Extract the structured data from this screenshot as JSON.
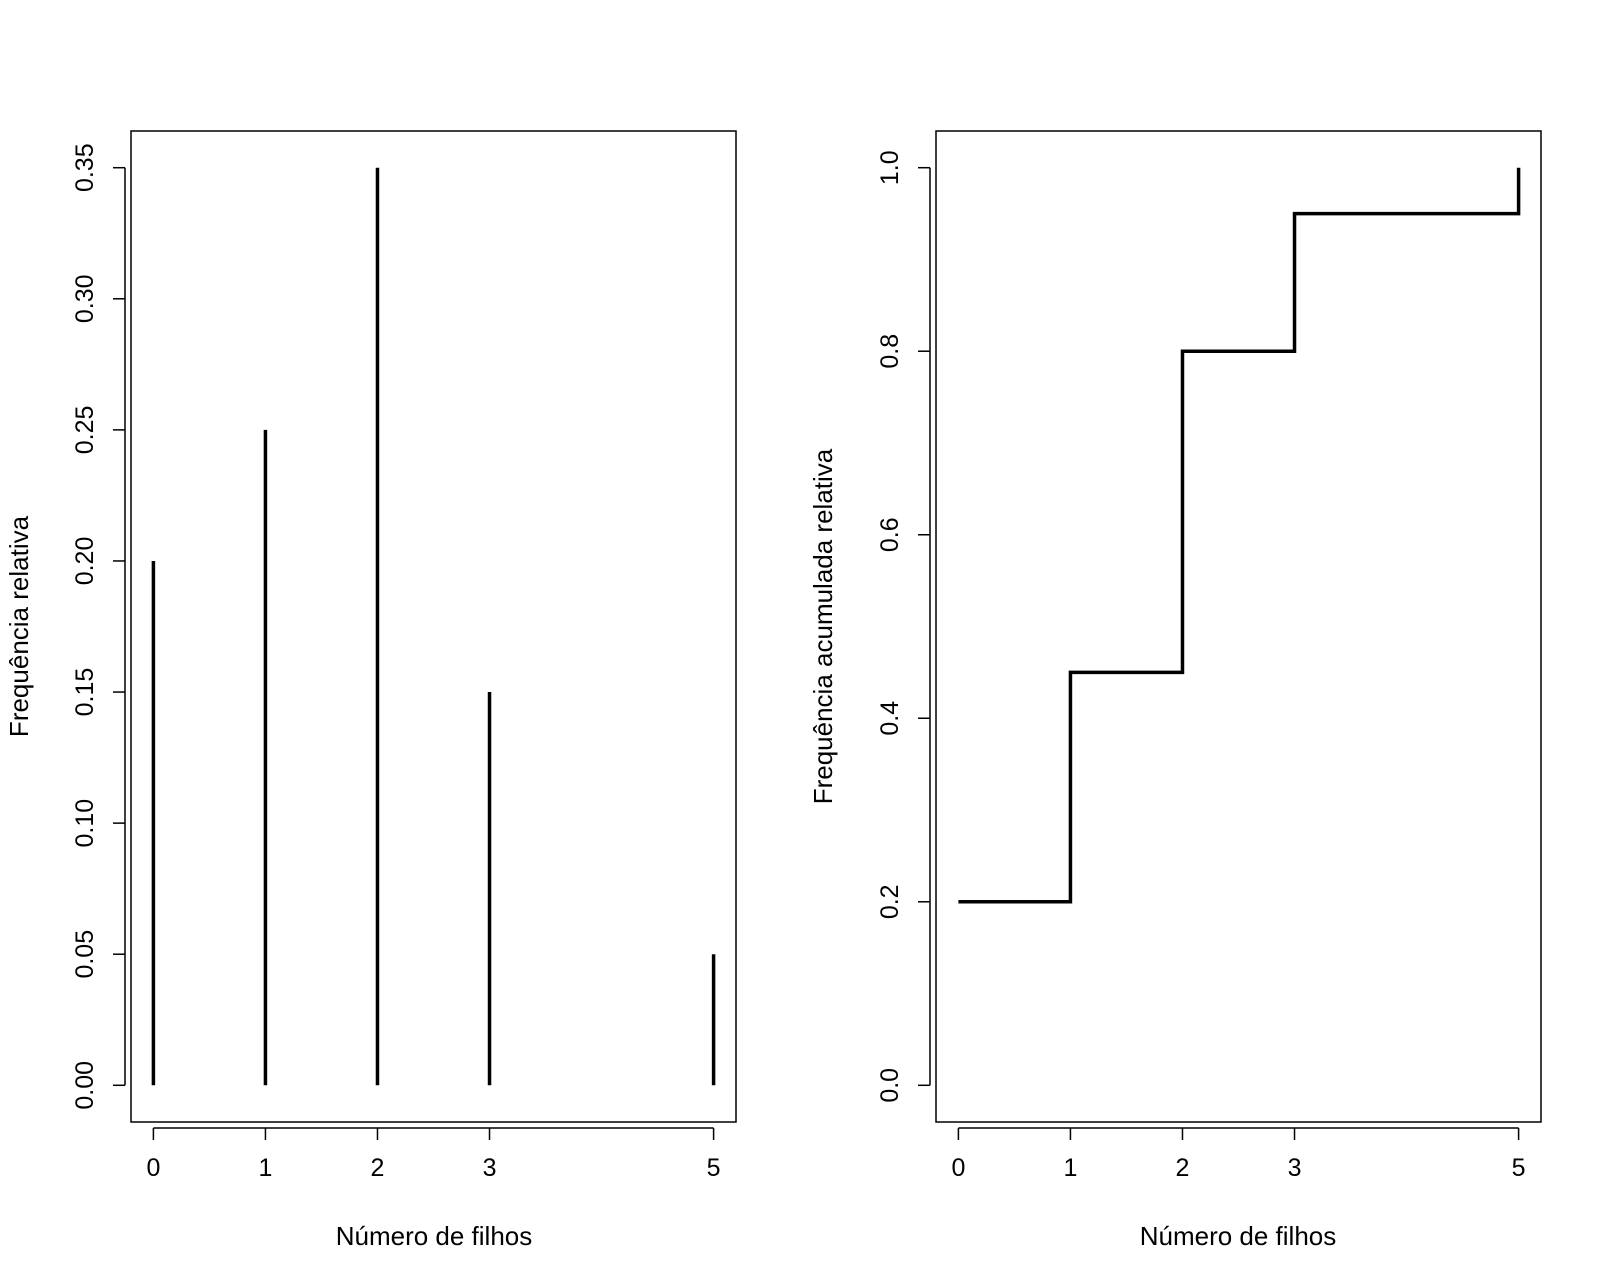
{
  "chart_data": [
    {
      "type": "bar",
      "style": "vertical lines (type h)",
      "x": [
        0,
        1,
        2,
        3,
        5
      ],
      "values": [
        0.2,
        0.25,
        0.35,
        0.15,
        0.05
      ],
      "xlabel": "Número de filhos",
      "ylabel": "Frequência relativa",
      "xticks": [
        0,
        1,
        2,
        3,
        5
      ],
      "xtick_labels": [
        "0",
        "1",
        "2",
        "3",
        "5"
      ],
      "yticks": [
        0,
        0.05,
        0.1,
        0.15,
        0.2,
        0.25,
        0.3,
        0.35
      ],
      "ytick_labels": [
        "0.00",
        "0.05",
        "0.10",
        "0.15",
        "0.20",
        "0.25",
        "0.30",
        "0.35"
      ],
      "xlim": [
        -0.2,
        5.2
      ],
      "ylim": [
        -0.014,
        0.364
      ],
      "grid": false,
      "color": "#000000"
    },
    {
      "type": "line",
      "style": "step",
      "x": [
        0,
        1,
        2,
        3,
        5
      ],
      "values": [
        0.2,
        0.45,
        0.8,
        0.95,
        1.0
      ],
      "xlabel": "Número de filhos",
      "ylabel": "Frequência acumulada relativa",
      "xticks": [
        0,
        1,
        2,
        3,
        5
      ],
      "xtick_labels": [
        "0",
        "1",
        "2",
        "3",
        "5"
      ],
      "yticks": [
        0,
        0.2,
        0.4,
        0.6,
        0.8,
        1.0
      ],
      "ytick_labels": [
        "0.0",
        "0.2",
        "0.4",
        "0.6",
        "0.8",
        "1.0"
      ],
      "xlim": [
        -0.2,
        5.2
      ],
      "ylim": [
        -0.04,
        1.04
      ],
      "grid": false,
      "color": "#000000"
    }
  ]
}
